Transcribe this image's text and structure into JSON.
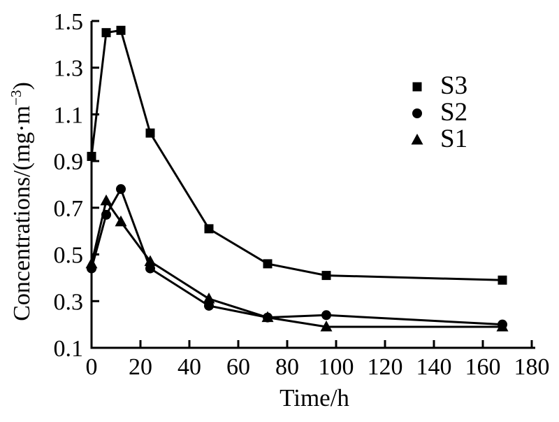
{
  "figure": {
    "background_color": "#ffffff",
    "ink_color": "#000000"
  },
  "chart_data": {
    "type": "line",
    "title": "",
    "xlabel": "Time/h",
    "ylabel": "Concentrations/(mg·m⁻³)",
    "ylabel_parts": {
      "prefix": "Concentrations/(mg·m",
      "superscript": "−3",
      "suffix": ")"
    },
    "x": [
      0,
      6,
      12,
      24,
      48,
      72,
      96,
      168
    ],
    "series": [
      {
        "name": "S3",
        "marker": "square",
        "color": "#000000",
        "values": [
          0.92,
          1.45,
          1.46,
          1.02,
          0.61,
          0.46,
          0.41,
          0.39
        ]
      },
      {
        "name": "S2",
        "marker": "circle",
        "color": "#000000",
        "values": [
          0.44,
          0.67,
          0.78,
          0.44,
          0.28,
          0.23,
          0.24,
          0.2
        ]
      },
      {
        "name": "S1",
        "marker": "triangle",
        "color": "#000000",
        "values": [
          0.46,
          0.73,
          0.64,
          0.47,
          0.31,
          0.23,
          0.19,
          0.19
        ]
      }
    ],
    "x_ticks": [
      0,
      20,
      40,
      60,
      80,
      100,
      120,
      140,
      160,
      180
    ],
    "y_ticks": [
      0.1,
      0.3,
      0.5,
      0.7,
      0.9,
      1.1,
      1.3,
      1.5
    ],
    "x_tick_labels": [
      "0",
      "20",
      "40",
      "60",
      "80",
      "100",
      "120",
      "140",
      "160",
      "180"
    ],
    "y_tick_labels": [
      "0.1",
      "0.3",
      "0.5",
      "0.7",
      "0.9",
      "1.1",
      "1.3",
      "1.5"
    ],
    "xlim": [
      0,
      180
    ],
    "ylim": [
      0.1,
      1.5
    ],
    "grid": false,
    "legend_position": "upper-right-inside",
    "legend_entries": [
      "S3",
      "S2",
      "S1"
    ]
  }
}
